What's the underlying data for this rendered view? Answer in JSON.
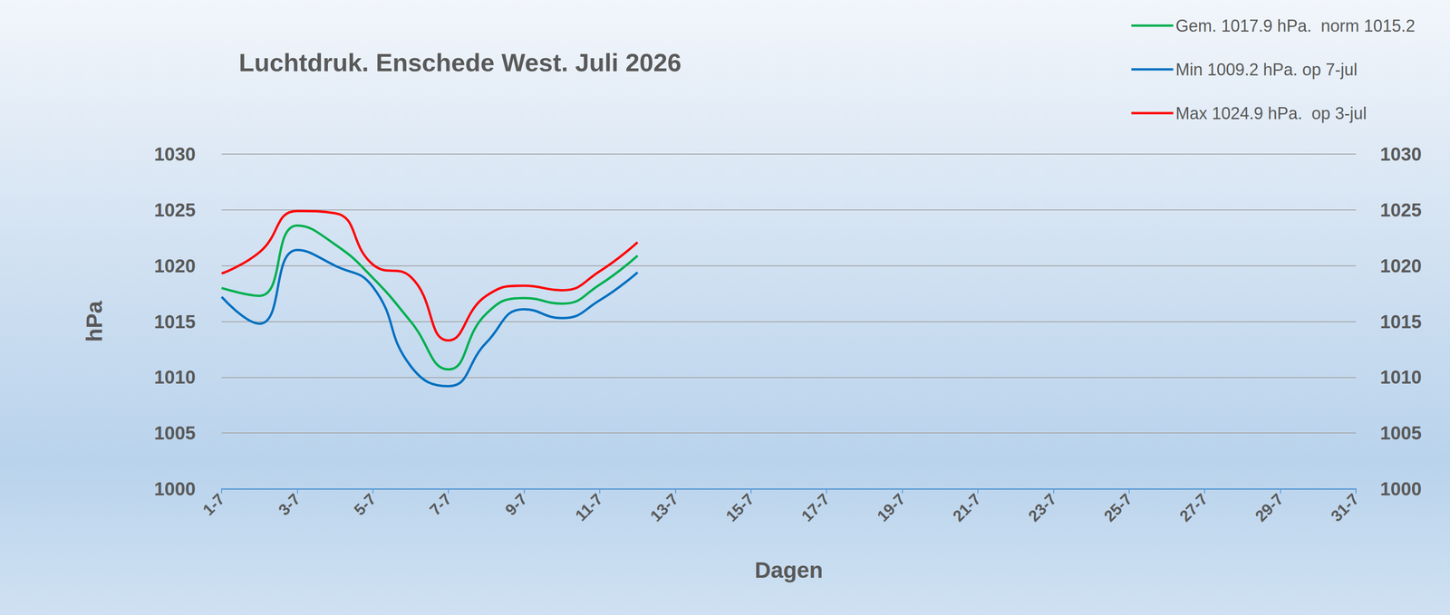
{
  "chart_data": {
    "type": "line",
    "title": "Luchtdruk. Enschede West. Juli 2026",
    "x_label": "Dagen",
    "y_label": "hPa",
    "categories": [
      "1-7",
      null,
      "3-7",
      null,
      "5-7",
      null,
      "7-7",
      null,
      "9-7",
      null,
      "11-7",
      null,
      "13-7",
      null,
      "15-7",
      null,
      "17-7",
      null,
      "19-7",
      null,
      "21-7",
      null,
      "23-7",
      null,
      "25-7",
      null,
      "27-7",
      null,
      "29-7",
      null,
      "31-7"
    ],
    "series": [
      {
        "name": "Gem. 1017.9 hPa.  norm 1015.2",
        "color": "#00b050",
        "marker": "none",
        "values": [
          1018.0,
          1017.3,
          1023.6,
          1021.9,
          1018.9,
          1015.0,
          1010.7,
          1015.7,
          1017.1,
          1016.6,
          1018.3,
          1020.9,
          null,
          null,
          null,
          null,
          null,
          null,
          null,
          null,
          null,
          null,
          null,
          null,
          null,
          null,
          null,
          null,
          null,
          null,
          null
        ]
      },
      {
        "name": "Min 1009.2 hPa. op 7-jul",
        "color": "#0070c0",
        "marker": "none",
        "values": [
          1017.2,
          1014.8,
          1021.4,
          1020.0,
          1018.1,
          1011.0,
          1009.2,
          1013.1,
          1016.1,
          1015.3,
          1016.9,
          1019.4,
          null,
          null,
          null,
          null,
          null,
          null,
          null,
          null,
          null,
          null,
          null,
          null,
          null,
          null,
          null,
          null,
          null,
          null,
          null
        ]
      },
      {
        "name": "Max 1024.9 hPa.  op 3-jul",
        "color": "#ff0000",
        "marker": "none",
        "values": [
          1019.3,
          1021.2,
          1024.9,
          1024.7,
          1020.1,
          1019.0,
          1013.3,
          1017.3,
          1018.2,
          1017.8,
          1019.5,
          1022.1,
          null,
          null,
          null,
          null,
          null,
          null,
          null,
          null,
          null,
          null,
          null,
          null,
          null,
          null,
          null,
          null,
          null,
          null,
          null
        ]
      }
    ],
    "ylim": [
      1000,
      1030
    ],
    "yticks": [
      1000,
      1005,
      1010,
      1015,
      1020,
      1025,
      1030
    ],
    "y2lim": [
      1000,
      1030
    ],
    "y2ticks": [
      1000,
      1005,
      1010,
      1015,
      1020,
      1025,
      1030
    ],
    "grid": true,
    "legend": "top-right"
  }
}
